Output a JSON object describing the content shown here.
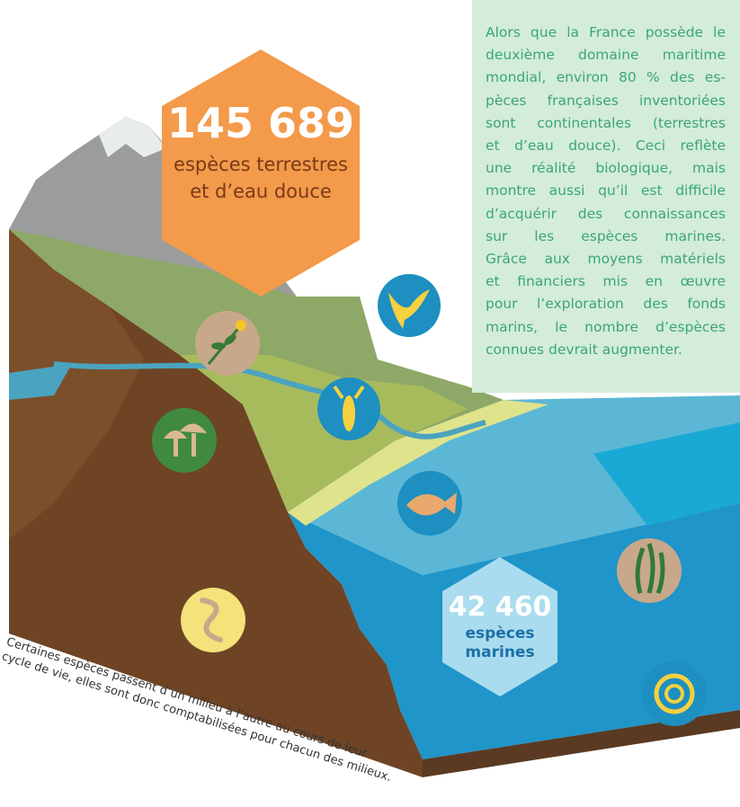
{
  "land_badge": {
    "count": "145 689",
    "label_lines": [
      "espèces terrestres",
      "et d’eau douce"
    ]
  },
  "sea_badge": {
    "count": "42 460",
    "label_lines": [
      "espèces",
      "marines"
    ]
  },
  "info_box": {
    "lines": [
      "Alors que la France possède le",
      "deuxième domaine maritime",
      "mondial, environ 80 % des es-",
      "pèces françaises inventoriées",
      "sont continentales (terrestres",
      "et d’eau douce). Ceci reflète",
      "une réalité biologique, mais",
      "montre aussi qu’il est difficile",
      "d’acquérir des connaissances",
      "sur les espèces marines.",
      "Grâce aux moyens matériels",
      "et financiers mis en œuvre",
      "pour l’exploration des fonds",
      "marins, le nombre d’espèces",
      "connues devrait augmenter."
    ]
  },
  "caption": {
    "lines": [
      "Certaines espèces passent d’un milieu à l’autre au cours de leur",
      "cycle de vie, elles sont donc comptabilisées pour chacun des milieux."
    ]
  }
}
